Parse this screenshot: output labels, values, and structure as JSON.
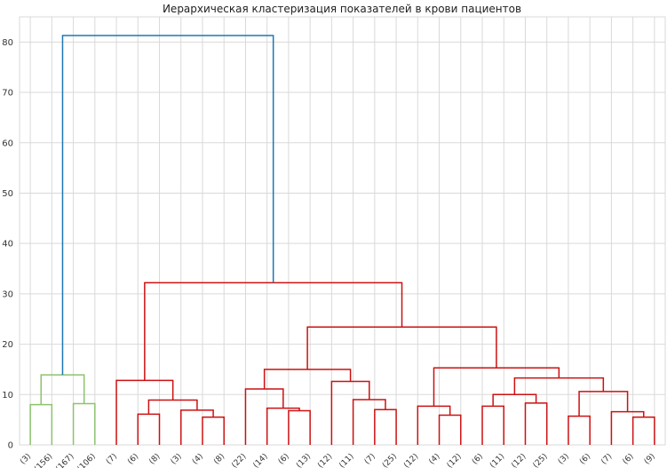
{
  "chart_data": {
    "type": "dendrogram",
    "title": "Иерархическая кластеризация показателей в крови пациентов",
    "xlabel": "",
    "ylabel": "",
    "ylim": [
      0,
      85
    ],
    "yticks": [
      0,
      10,
      20,
      30,
      40,
      50,
      60,
      70,
      80
    ],
    "grid": true,
    "leaves": [
      "(3)",
      "(156)",
      "(167)",
      "(106)",
      "(7)",
      "(6)",
      "(8)",
      "(3)",
      "(4)",
      "(8)",
      "(22)",
      "(14)",
      "(6)",
      "(13)",
      "(12)",
      "(11)",
      "(7)",
      "(25)",
      "(12)",
      "(4)",
      "(12)",
      "(6)",
      "(11)",
      "(12)",
      "(25)",
      "(3)",
      "(6)",
      "(7)",
      "(6)",
      "(9)"
    ],
    "colors": {
      "above_threshold": "#1f77b4",
      "cluster_green": "#8cc36d",
      "cluster_red": "#cc1111"
    },
    "merges": [
      {
        "left": 0,
        "right": 1,
        "height": 8.0,
        "color": "cluster_green"
      },
      {
        "left": 2,
        "right": 3,
        "height": 8.2,
        "color": "cluster_green"
      },
      {
        "left": 30,
        "right": 31,
        "height": 13.9,
        "color": "cluster_green"
      },
      {
        "left": 5,
        "right": 6,
        "height": 6.1,
        "color": "cluster_red"
      },
      {
        "left": 8,
        "right": 9,
        "height": 5.5,
        "color": "cluster_red"
      },
      {
        "left": 7,
        "right": 34,
        "height": 6.9,
        "color": "cluster_red"
      },
      {
        "left": 33,
        "right": 35,
        "height": 8.9,
        "color": "cluster_red"
      },
      {
        "left": 4,
        "right": 36,
        "height": 12.8,
        "color": "cluster_red"
      },
      {
        "left": 12,
        "right": 13,
        "height": 6.8,
        "color": "cluster_red"
      },
      {
        "left": 11,
        "right": 38,
        "height": 7.3,
        "color": "cluster_red"
      },
      {
        "left": 10,
        "right": 39,
        "height": 11.1,
        "color": "cluster_red"
      },
      {
        "left": 16,
        "right": 17,
        "height": 7.0,
        "color": "cluster_red"
      },
      {
        "left": 15,
        "right": 41,
        "height": 9.0,
        "color": "cluster_red"
      },
      {
        "left": 14,
        "right": 42,
        "height": 12.6,
        "color": "cluster_red"
      },
      {
        "left": 40,
        "right": 43,
        "height": 15.0,
        "color": "cluster_red"
      },
      {
        "left": 19,
        "right": 20,
        "height": 5.9,
        "color": "cluster_red"
      },
      {
        "left": 18,
        "right": 45,
        "height": 7.7,
        "color": "cluster_red"
      },
      {
        "left": 23,
        "right": 24,
        "height": 8.3,
        "color": "cluster_red"
      },
      {
        "left": 21,
        "right": 22,
        "height": 7.7,
        "color": "cluster_red"
      },
      {
        "left": 48,
        "right": 47,
        "height": 10.0,
        "color": "cluster_red"
      },
      {
        "left": 28,
        "right": 29,
        "height": 5.5,
        "color": "cluster_red"
      },
      {
        "left": 27,
        "right": 50,
        "height": 6.6,
        "color": "cluster_red"
      },
      {
        "left": 25,
        "right": 26,
        "height": 5.7,
        "color": "cluster_red"
      },
      {
        "left": 52,
        "right": 51,
        "height": 10.6,
        "color": "cluster_red"
      },
      {
        "left": 49,
        "right": 53,
        "height": 13.3,
        "color": "cluster_red"
      },
      {
        "left": 46,
        "right": 54,
        "height": 15.3,
        "color": "cluster_red"
      },
      {
        "left": 44,
        "right": 55,
        "height": 23.4,
        "color": "cluster_red"
      },
      {
        "left": 37,
        "right": 56,
        "height": 32.2,
        "color": "cluster_red"
      },
      {
        "left": 32,
        "right": 57,
        "height": 81.3,
        "color": "above_threshold"
      }
    ]
  }
}
